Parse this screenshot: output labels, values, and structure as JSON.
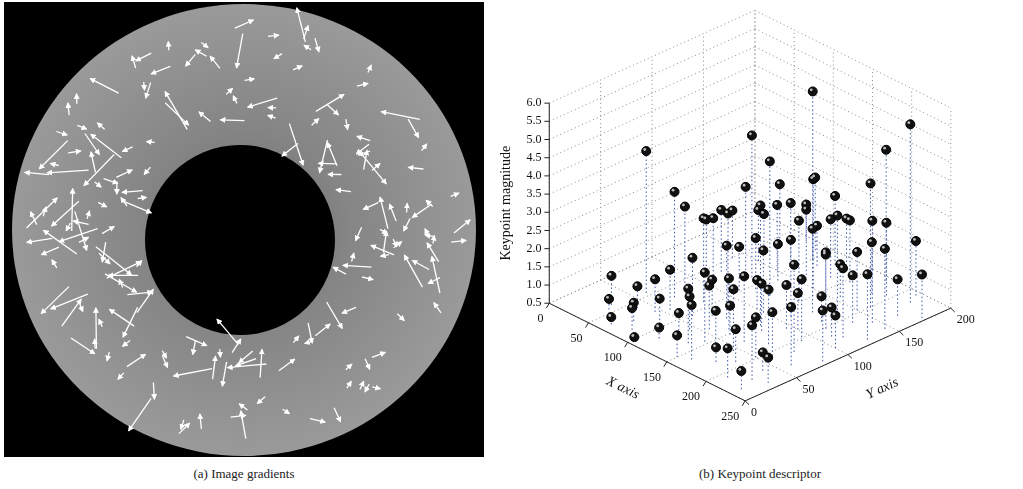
{
  "image": {
    "caption": "(a) Image gradients"
  },
  "chart_data": {
    "type": "scatter",
    "caption": "(b) Keypoint descriptor",
    "xlabel": "X axis",
    "ylabel": "Y axis",
    "zlabel": "Keypoint magnitude",
    "xlim": [
      0,
      250
    ],
    "xticks": [
      0,
      50,
      100,
      150,
      200,
      250
    ],
    "ylim": [
      0,
      200
    ],
    "yticks": [
      0,
      50,
      100,
      150,
      200
    ],
    "zlim": [
      0.5,
      6.0
    ],
    "zticks": [
      0.5,
      {
        "value": 1,
        "label": "1.0"
      },
      1.5,
      {
        "value": 2,
        "label": "2.0"
      },
      2.5,
      {
        "value": 3,
        "label": "3.0"
      },
      3.5,
      {
        "value": 4,
        "label": "4.0"
      },
      4.5,
      {
        "value": 5,
        "label": "5.0"
      },
      5.5,
      {
        "value": 6,
        "label": "6.0"
      }
    ],
    "grid": true,
    "color": "#111111",
    "marker": "sphere",
    "line_style": "dotted",
    "x": [
      40,
      45,
      50,
      55,
      60,
      62,
      68,
      70,
      75,
      78,
      82,
      85,
      88,
      92,
      95,
      98,
      100,
      104,
      108,
      110,
      114,
      118,
      120,
      124,
      128,
      130,
      134,
      138,
      140,
      144,
      148,
      150,
      154,
      158,
      160,
      164,
      168,
      170,
      174,
      178,
      180,
      184,
      188,
      190,
      194,
      198,
      200,
      204,
      208,
      210,
      214,
      218,
      220,
      224,
      228,
      230,
      234,
      238,
      240,
      244,
      50,
      58,
      66,
      72,
      80,
      86,
      94,
      102,
      112,
      122,
      132,
      142,
      152,
      162,
      172,
      182,
      192,
      202,
      212,
      222,
      232,
      242,
      246,
      56,
      64,
      76,
      90,
      106,
      116,
      126,
      136,
      146,
      156,
      166,
      176,
      186,
      196,
      206,
      216,
      226
    ],
    "y": [
      30,
      60,
      20,
      90,
      40,
      120,
      70,
      150,
      25,
      100,
      55,
      170,
      130,
      80,
      35,
      110,
      180,
      60,
      140,
      90,
      20,
      160,
      45,
      120,
      75,
      190,
      100,
      30,
      150,
      65,
      130,
      10,
      175,
      85,
      40,
      110,
      155,
      60,
      195,
      95,
      25,
      140,
      70,
      120,
      180,
      50,
      160,
      90,
      15,
      135,
      75,
      185,
      40,
      115,
      165,
      60,
      100,
      145,
      30,
      80,
      140,
      180,
      10,
      195,
      130,
      15,
      150,
      5,
      175,
      185,
      55,
      100,
      60,
      15,
      125,
      175,
      35,
      115,
      195,
      145,
      10,
      125,
      175,
      110,
      160,
      45,
      190,
      120,
      70,
      30,
      170,
      40,
      150,
      80,
      45,
      100,
      150,
      60,
      110,
      25
    ],
    "values": [
      1.3,
      4.4,
      0.9,
      2.6,
      1.1,
      2.2,
      3.4,
      1.9,
      1.0,
      2.4,
      1.6,
      2.0,
      4.4,
      2.8,
      1.2,
      1.7,
      5.1,
      2.1,
      1.5,
      3.0,
      0.8,
      2.3,
      1.4,
      4.2,
      2.5,
      1.8,
      1.3,
      2.0,
      3.5,
      1.9,
      2.7,
      1.1,
      2.2,
      3.8,
      1.5,
      2.6,
      1.4,
      2.3,
      4.1,
      1.7,
      0.9,
      3.1,
      2.0,
      1.2,
      2.5,
      1.6,
      3.9,
      2.2,
      1.3,
      1.8,
      2.9,
      5.4,
      1.0,
      2.4,
      1.5,
      2.1,
      1.4,
      2.7,
      1.2,
      1.9,
      1.8,
      2.1,
      0.7,
      1.5,
      2.9,
      1.1,
      2.3,
      0.6,
      1.6,
      2.4,
      1.7,
      2.2,
      1.3,
      2.0,
      2.8,
      1.9,
      1.4,
      2.6,
      2.0,
      3.3,
      1.0,
      2.3,
      1.7,
      2.0,
      1.6,
      1.4,
      2.5,
      1.9,
      1.5,
      1.2,
      2.1,
      2.4,
      1.6,
      1.8,
      2.2,
      1.5,
      2.1,
      1.7,
      1.3,
      2.0
    ]
  }
}
